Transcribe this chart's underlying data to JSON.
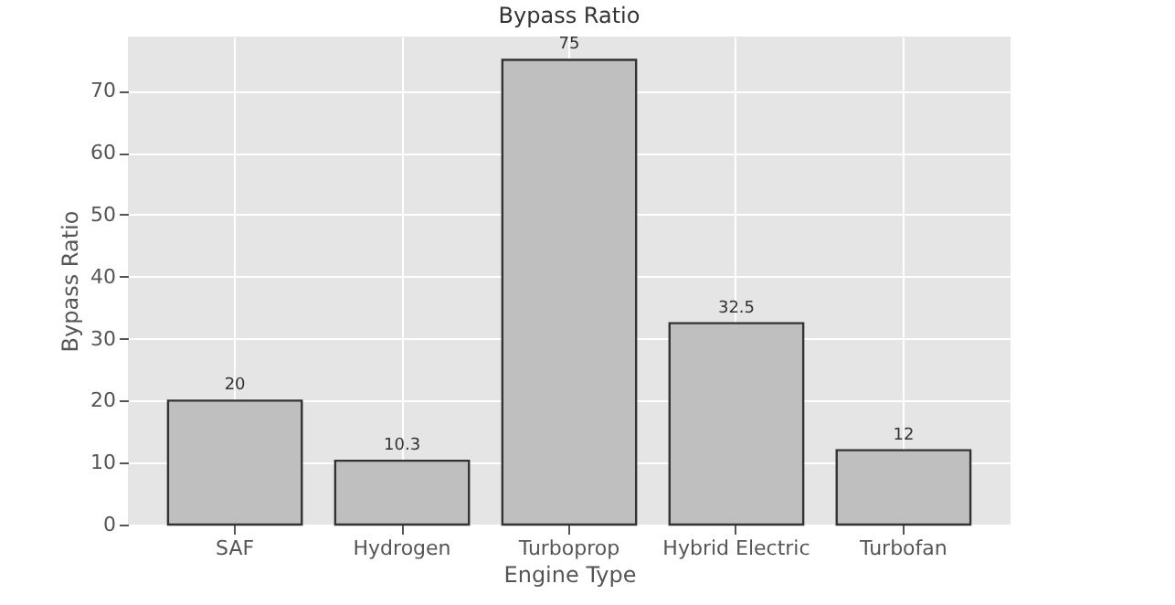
{
  "chart_data": {
    "type": "bar",
    "title": "Bypass Ratio",
    "xlabel": "Engine Type",
    "ylabel": "Bypass Ratio",
    "categories": [
      "SAF",
      "Hydrogen",
      "Turboprop",
      "Hybrid Electric",
      "Turbofan"
    ],
    "values": [
      20,
      10.3,
      75,
      32.5,
      12
    ],
    "color": "#bfbfbf",
    "ylim": [
      0,
      78.75
    ],
    "yticks": [
      0,
      10,
      20,
      30,
      40,
      50,
      60,
      70
    ],
    "grid": true,
    "data_labels": true
  }
}
